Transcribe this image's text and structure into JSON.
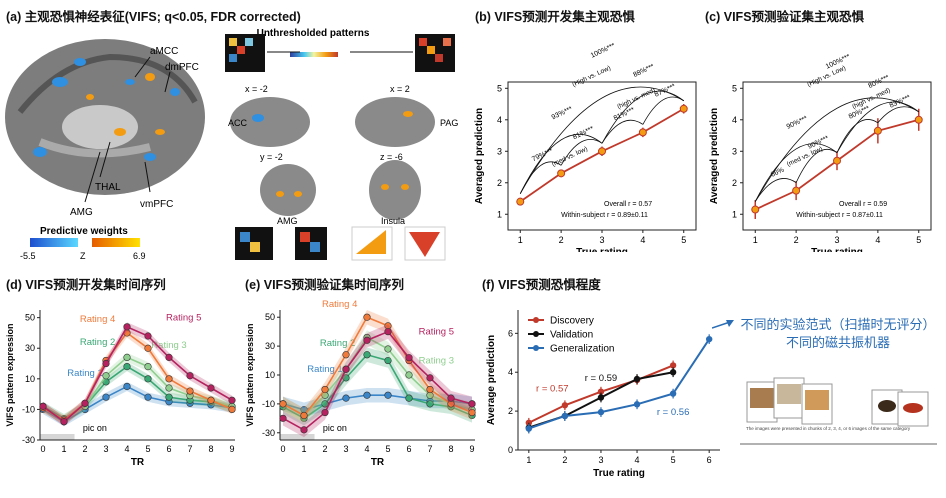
{
  "panels": {
    "a": {
      "title": "(a) 主观恐惧神经表征(VIFS; q<0.05, FDR corrected)",
      "brain_labels": [
        "aMCC",
        "dmPFC",
        "THAL",
        "AMG",
        "vmPFC"
      ],
      "unthresholded": "Unthresholded patterns",
      "views": {
        "acc": "ACC",
        "pag": "PAG",
        "amg": "AMG",
        "insula": "Insula",
        "x1": "x = -2",
        "x2": "x = 2",
        "y": "y = -2",
        "z": "z = -6"
      },
      "colorbar": {
        "title": "Predictive weights",
        "min": "-5.5",
        "mid": "Z",
        "max": "6.9"
      },
      "colors": {
        "negative": "#2f8fe0",
        "positive": "#f39c12"
      }
    },
    "b": {
      "title": "(b) VIFS预测开发集主观恐惧",
      "stats1": "Overall r = 0.57",
      "stats2": "Within-subject r = 0.89±0.11",
      "arcs": [
        "79%***",
        "81%***",
        "81%***",
        "87%***",
        "93%***",
        "88%***",
        "100%***"
      ],
      "arc_notes": [
        "(med vs. low)",
        "(high vs. med)",
        "(High vs. Low)"
      ]
    },
    "c": {
      "title": "(c) VIFS预测验证集主观恐惧",
      "stats1": "Overall r = 0.59",
      "stats2": "Within-subject r = 0.87±0.11",
      "arcs": [
        "66%",
        "90%***",
        "80%***",
        "83%***",
        "90%***",
        "80%***",
        "100%***"
      ],
      "arc_notes": [
        "(med vs. low)",
        "(high vs. med)",
        "(High vs. Low)"
      ]
    },
    "d": {
      "title": "(d) VIFS预测开发集时间序列",
      "annotation": "pic on",
      "series_labels": [
        "Rating 1",
        "Rating 2",
        "Rating 3",
        "Rating 4",
        "Rating 5"
      ]
    },
    "e": {
      "title": "(e) VIFS预测验证集时间序列",
      "annotation": "pic on",
      "series_labels": [
        "Rating 1",
        "Rating 2",
        "Rating 3",
        "Rating 4",
        "Rating 5"
      ]
    },
    "f": {
      "title": "(f) VIFS预测恐惧程度",
      "r_labels": [
        "r = 0.57",
        "r = 0.59",
        "r = 0.56"
      ]
    }
  },
  "note": {
    "line1": "不同的实验范式（扫描时无评分）",
    "line2": "不同的磁共振机器",
    "caption": "The images were presented in chunks of 2, 3, 4, or 6 images of the same category"
  },
  "chart_data": [
    {
      "id": "b",
      "type": "line",
      "xlabel": "True rating",
      "ylabel": "Averaged prediction",
      "x": [
        1,
        2,
        3,
        4,
        5
      ],
      "y": [
        1.4,
        2.3,
        3.0,
        3.6,
        4.35
      ],
      "err": [
        0.12,
        0.12,
        0.15,
        0.15,
        0.15
      ],
      "xlim": [
        0.7,
        5.3
      ],
      "ylim": [
        0.5,
        5.2
      ],
      "xticks": [
        1,
        2,
        3,
        4,
        5
      ],
      "yticks": [
        1,
        2,
        3,
        4,
        5
      ],
      "color": "#c0392b"
    },
    {
      "id": "c",
      "type": "line",
      "xlabel": "True rating",
      "ylabel": "Averaged prediction",
      "x": [
        1,
        2,
        3,
        4,
        5
      ],
      "y": [
        1.15,
        1.75,
        2.7,
        3.65,
        4.0
      ],
      "err": [
        0.3,
        0.3,
        0.3,
        0.4,
        0.35
      ],
      "xlim": [
        0.7,
        5.3
      ],
      "ylim": [
        0.5,
        5.2
      ],
      "xticks": [
        1,
        2,
        3,
        4,
        5
      ],
      "yticks": [
        1,
        2,
        3,
        4,
        5
      ],
      "color": "#c0392b"
    },
    {
      "id": "d",
      "type": "line",
      "xlabel": "TR",
      "ylabel": "VIFS pattern expression",
      "x": [
        0,
        1,
        2,
        3,
        4,
        5,
        6,
        7,
        8,
        9
      ],
      "xticks": [
        0,
        1,
        2,
        3,
        4,
        5,
        6,
        7,
        8,
        9
      ],
      "yticks": [
        -30,
        -10,
        10,
        30,
        50
      ],
      "ylim": [
        -30,
        55
      ],
      "series": [
        {
          "name": "Rating 1",
          "color": "#3a86c8",
          "values": [
            -10,
            -18,
            -10,
            -2,
            5,
            -2,
            -5,
            -6,
            -7,
            -9
          ],
          "band": 3
        },
        {
          "name": "Rating 2",
          "color": "#3aa874",
          "values": [
            -8,
            -16,
            -8,
            8,
            18,
            10,
            -2,
            -4,
            -5,
            -9
          ],
          "band": 3
        },
        {
          "name": "Rating 3",
          "color": "#8fce8f",
          "values": [
            -9,
            -17,
            -8,
            12,
            24,
            18,
            4,
            -1,
            -4,
            -8
          ],
          "band": 3
        },
        {
          "name": "Rating 4",
          "color": "#f07a3a",
          "values": [
            -9,
            -17,
            -6,
            22,
            40,
            30,
            10,
            2,
            -4,
            -10
          ],
          "band": 3
        },
        {
          "name": "Rating 5",
          "color": "#b5225f",
          "values": [
            -8,
            -18,
            -6,
            20,
            44,
            38,
            24,
            12,
            4,
            -4
          ],
          "band": 3
        }
      ]
    },
    {
      "id": "e",
      "type": "line",
      "xlabel": "TR",
      "ylabel": "VIFS pattern expression",
      "x": [
        0,
        1,
        2,
        3,
        4,
        5,
        6,
        7,
        8,
        9
      ],
      "xticks": [
        0,
        1,
        2,
        3,
        4,
        5,
        6,
        7,
        8,
        9
      ],
      "yticks": [
        -30,
        -10,
        10,
        30,
        50
      ],
      "ylim": [
        -35,
        55
      ],
      "series": [
        {
          "name": "Rating 1",
          "color": "#3a86c8",
          "values": [
            -10,
            -14,
            -10,
            -6,
            -4,
            -4,
            -6,
            -8,
            -8,
            -10
          ],
          "band": 5
        },
        {
          "name": "Rating 2",
          "color": "#3aa874",
          "values": [
            -12,
            -20,
            -10,
            8,
            24,
            20,
            -6,
            -10,
            -12,
            -18
          ],
          "band": 5
        },
        {
          "name": "Rating 3",
          "color": "#8fce8f",
          "values": [
            -10,
            -18,
            -4,
            14,
            36,
            28,
            10,
            -4,
            -10,
            -14
          ],
          "band": 5
        },
        {
          "name": "Rating 4",
          "color": "#f07a3a",
          "values": [
            -10,
            -18,
            0,
            24,
            50,
            44,
            20,
            0,
            -10,
            -16
          ],
          "band": 5
        },
        {
          "name": "Rating 5",
          "color": "#b5225f",
          "values": [
            -20,
            -28,
            -16,
            14,
            34,
            40,
            22,
            8,
            -6,
            -10
          ],
          "band": 5
        }
      ]
    },
    {
      "id": "f",
      "type": "line",
      "xlabel": "True rating",
      "ylabel": "Average prediction",
      "x_ticks": [
        1,
        2,
        3,
        4,
        5,
        6
      ],
      "yticks": [
        0,
        2,
        4,
        6
      ],
      "ylim": [
        0,
        7.2
      ],
      "xlim": [
        0.7,
        6.3
      ],
      "series": [
        {
          "name": "Discovery",
          "color": "#c0392b",
          "x": [
            1,
            2,
            3,
            4,
            5
          ],
          "values": [
            1.4,
            2.3,
            3.0,
            3.6,
            4.35
          ]
        },
        {
          "name": "Validation",
          "color": "#111111",
          "x": [
            1,
            2,
            3,
            4,
            5
          ],
          "values": [
            1.15,
            1.75,
            2.7,
            3.65,
            4.0
          ]
        },
        {
          "name": "Generalization",
          "color": "#2a6db5",
          "x": [
            1,
            2,
            3,
            4,
            5,
            6
          ],
          "values": [
            1.1,
            1.75,
            1.95,
            2.35,
            2.9,
            5.7
          ]
        }
      ]
    }
  ]
}
